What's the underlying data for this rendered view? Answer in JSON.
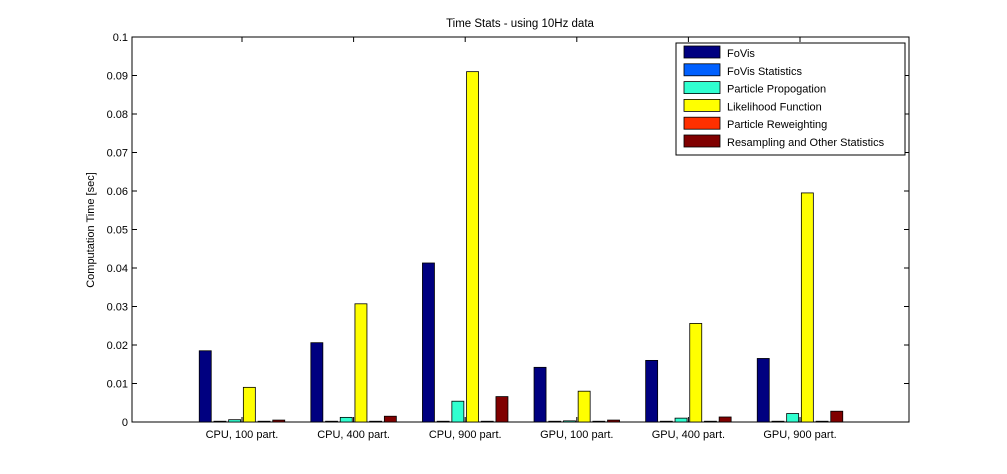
{
  "chart_data": {
    "type": "bar",
    "title": "Time Stats - using 10Hz data",
    "xlabel": "",
    "ylabel": "Computation Time [sec]",
    "ylim": [
      0,
      0.1
    ],
    "yticks": [
      "0",
      "0.01",
      "0.02",
      "0.03",
      "0.04",
      "0.05",
      "0.06",
      "0.07",
      "0.08",
      "0.09",
      "0.1"
    ],
    "categories": [
      "CPU, 100 part.",
      "CPU, 400 part.",
      "CPU, 900 part.",
      "GPU, 100 part.",
      "GPU, 400 part.",
      "GPU, 900 part."
    ],
    "series": [
      {
        "name": "FoVis",
        "color": "#000080",
        "values": [
          0.0185,
          0.0206,
          0.0413,
          0.0142,
          0.016,
          0.0165
        ]
      },
      {
        "name": "FoVis Statistics",
        "color": "#0060ff",
        "values": [
          0.0002,
          0.0002,
          0.0002,
          0.0002,
          0.0002,
          0.0002
        ]
      },
      {
        "name": "Particle Propogation",
        "color": "#30ffd0",
        "values": [
          0.0006,
          0.0012,
          0.0054,
          0.0003,
          0.001,
          0.0022
        ]
      },
      {
        "name": "Likelihood Function",
        "color": "#ffff00",
        "values": [
          0.009,
          0.0307,
          0.091,
          0.008,
          0.0256,
          0.0595
        ]
      },
      {
        "name": "Particle Reweighting",
        "color": "#ff3000",
        "values": [
          0.0002,
          0.0002,
          0.0002,
          0.0002,
          0.0002,
          0.0002
        ]
      },
      {
        "name": "Resampling and Other Statistics",
        "color": "#800000",
        "values": [
          0.0005,
          0.0015,
          0.0066,
          0.0005,
          0.0013,
          0.0028
        ]
      }
    ],
    "legend_position": "top-right",
    "grid": false
  }
}
